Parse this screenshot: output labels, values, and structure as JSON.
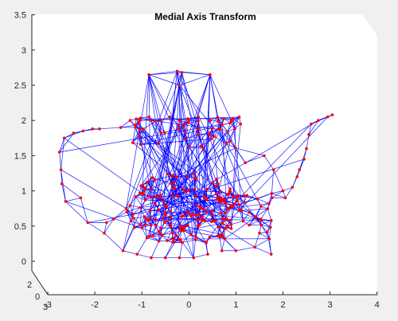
{
  "window": {
    "background": "#f0f0f0"
  },
  "chart_data": {
    "type": "scatter",
    "subtype": "3d-graph",
    "title": "Medial Axis Transform",
    "xlabel": "",
    "ylabel": "",
    "zlabel": "",
    "grid": false,
    "legend": "none",
    "view": "3d",
    "xlim": [
      -3,
      4
    ],
    "ylim": [
      0,
      3
    ],
    "zlim": [
      0,
      3.5
    ],
    "x_ticks": [
      "-3",
      "-2",
      "-1",
      "0",
      "1",
      "2",
      "3",
      "4"
    ],
    "y_ticks": [
      "0",
      "2",
      "3"
    ],
    "z_ticks": [
      "0",
      "0.5",
      "1",
      "1.5",
      "2",
      "2.5",
      "3",
      "3.5"
    ],
    "colors": {
      "edges": "#0000ff",
      "nodes": "#ff0000",
      "axes_face": "#ffffff",
      "axis_line": "#262626"
    },
    "anchors": [
      {
        "x": -2.75,
        "z": 1.55
      },
      {
        "x": -2.65,
        "z": 1.75
      },
      {
        "x": -2.45,
        "z": 1.82
      },
      {
        "x": -2.25,
        "z": 1.85
      },
      {
        "x": -2.05,
        "z": 1.88
      },
      {
        "x": -1.9,
        "z": 1.88
      },
      {
        "x": -2.72,
        "z": 1.3
      },
      {
        "x": -2.7,
        "z": 1.1
      },
      {
        "x": -2.62,
        "z": 0.85
      },
      {
        "x": -2.3,
        "z": 0.9
      },
      {
        "x": -2.15,
        "z": 0.55
      },
      {
        "x": -1.75,
        "z": 0.55
      },
      {
        "x": -1.8,
        "z": 0.4
      },
      {
        "x": -1.6,
        "z": 0.6
      },
      {
        "x": -1.45,
        "z": 1.9
      },
      {
        "x": -1.25,
        "z": 2.0
      },
      {
        "x": -1.05,
        "z": 2.0
      },
      {
        "x": -0.85,
        "z": 2.05
      },
      {
        "x": -0.6,
        "z": 2.0
      },
      {
        "x": -0.4,
        "z": 2.05
      },
      {
        "x": -0.2,
        "z": 2.0
      },
      {
        "x": 0.0,
        "z": 2.0
      },
      {
        "x": 0.2,
        "z": 2.05
      },
      {
        "x": 0.45,
        "z": 2.0
      },
      {
        "x": 0.7,
        "z": 1.95
      },
      {
        "x": 0.9,
        "z": 2.0
      },
      {
        "x": 1.1,
        "z": 1.95
      },
      {
        "x": -0.85,
        "z": 2.65
      },
      {
        "x": -0.25,
        "z": 2.7
      },
      {
        "x": -0.15,
        "z": 2.68
      },
      {
        "x": -0.2,
        "z": 2.5
      },
      {
        "x": 0.45,
        "z": 2.65
      },
      {
        "x": -1.4,
        "z": 0.15
      },
      {
        "x": -1.1,
        "z": 0.1
      },
      {
        "x": -0.8,
        "z": 0.05
      },
      {
        "x": -0.5,
        "z": 0.05
      },
      {
        "x": -0.2,
        "z": 0.05
      },
      {
        "x": 0.1,
        "z": 0.05
      },
      {
        "x": 0.4,
        "z": 0.1
      },
      {
        "x": 0.7,
        "z": 0.15
      },
      {
        "x": 1.0,
        "z": 0.15
      },
      {
        "x": 1.4,
        "z": 0.2
      },
      {
        "x": 1.75,
        "z": 0.1
      },
      {
        "x": 1.5,
        "z": 0.4
      },
      {
        "x": 1.6,
        "z": 1.5
      },
      {
        "x": 1.2,
        "z": 1.4
      },
      {
        "x": 1.8,
        "z": 1.3
      },
      {
        "x": 2.0,
        "z": 1.0
      },
      {
        "x": 2.05,
        "z": 0.9
      },
      {
        "x": 2.2,
        "z": 1.05
      },
      {
        "x": 2.3,
        "z": 1.2
      },
      {
        "x": 2.35,
        "z": 1.3
      },
      {
        "x": 2.45,
        "z": 1.45
      },
      {
        "x": 2.5,
        "z": 1.6
      },
      {
        "x": 2.55,
        "z": 1.8
      },
      {
        "x": 2.6,
        "z": 1.95
      },
      {
        "x": 2.75,
        "z": 2.0
      },
      {
        "x": 2.95,
        "z": 2.05
      },
      {
        "x": 3.05,
        "z": 2.08
      }
    ],
    "seed": 20230411
  }
}
